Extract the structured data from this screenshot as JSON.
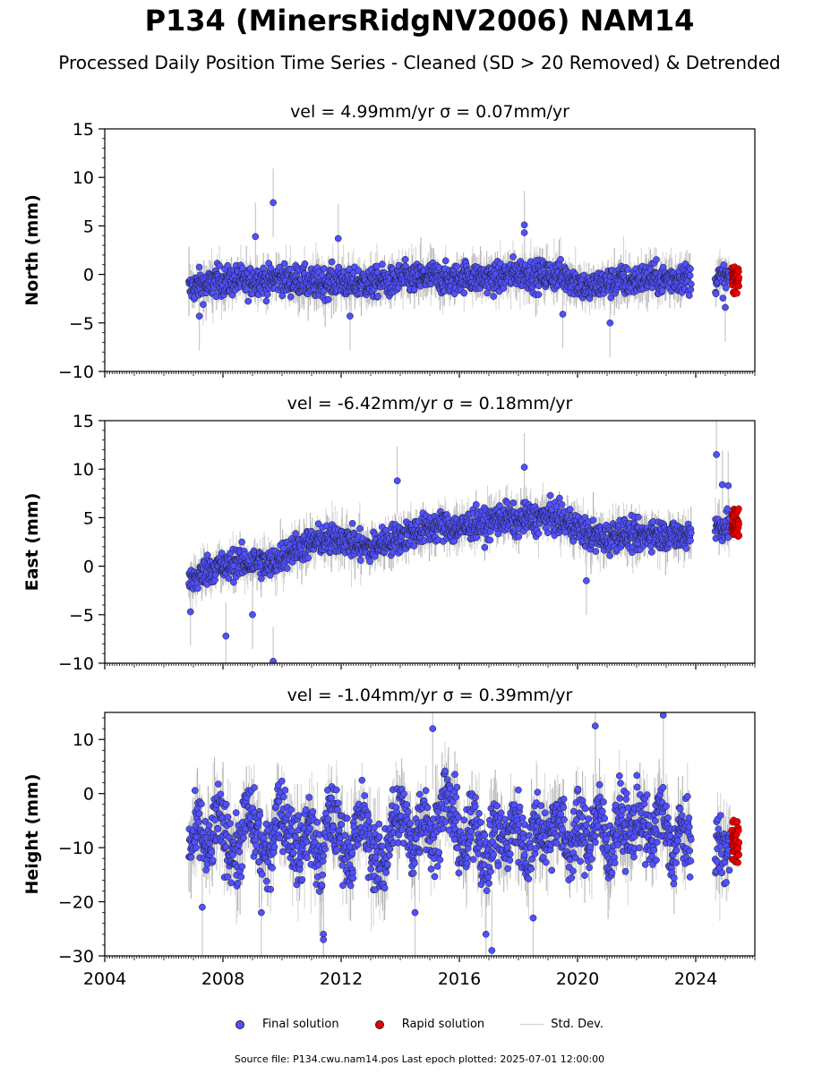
{
  "title": "P134 (MinersRidgNV2006) NAM14",
  "subtitle": "Processed Daily Position Time Series - Cleaned (SD > 20 Removed) & Detrended",
  "legend": {
    "final": "Final solution",
    "rapid": "Rapid solution",
    "std": "Std. Dev."
  },
  "footer": "Source file: P134.cwu.nam14.pos  Last epoch plotted: 2025-07-01 12:00:00",
  "colors": {
    "final": "#5050ff",
    "rapid": "#ee0000",
    "std": "#c8c8c8",
    "edge": "#1a1a1a"
  },
  "chart_data": [
    {
      "type": "scatter",
      "title": "vel = 4.99mm/yr   σ = 0.07mm/yr",
      "ylabel": "North (mm)",
      "xlim": [
        2004,
        2026
      ],
      "ylim": [
        -10,
        15
      ],
      "yticks": [
        -10,
        -5,
        0,
        5,
        10,
        15
      ],
      "xticks": [
        2004,
        2008,
        2012,
        2016,
        2020,
        2024
      ],
      "grid": false,
      "series": [
        {
          "name": "Final solution",
          "x": [
            2006.9,
            2007.2,
            2007.5,
            2007.8,
            2008.1,
            2008.5,
            2008.8,
            2009.2,
            2009.5,
            2009.9,
            2010.2,
            2010.6,
            2010.9,
            2011.3,
            2011.6,
            2012.0,
            2012.3,
            2012.7,
            2013.0,
            2013.4,
            2013.7,
            2014.1,
            2014.4,
            2014.8,
            2015.1,
            2015.5,
            2015.8,
            2016.2,
            2016.5,
            2016.9,
            2017.2,
            2017.6,
            2017.9,
            2018.3,
            2018.6,
            2019.0,
            2019.3,
            2019.7,
            2020.0,
            2020.4,
            2020.7,
            2021.1,
            2021.4,
            2021.8,
            2022.1,
            2022.5,
            2022.8,
            2023.2,
            2023.5,
            2023.8,
            2024.7,
            2025.0,
            2025.2
          ],
          "y": [
            -1.5,
            -1.0,
            -1.2,
            -0.6,
            -0.8,
            -0.5,
            -0.9,
            -0.4,
            -0.8,
            -0.3,
            -0.7,
            -0.5,
            -1.0,
            -0.9,
            -0.7,
            -0.6,
            -1.1,
            -0.8,
            -1.0,
            -0.6,
            -0.9,
            -0.3,
            -0.5,
            -0.4,
            -0.2,
            -0.5,
            -0.6,
            -0.1,
            -0.4,
            -0.3,
            -0.5,
            -0.1,
            0.2,
            0.1,
            -0.2,
            0.0,
            -0.1,
            -0.3,
            -0.8,
            -1.5,
            -1.0,
            -0.9,
            -0.6,
            -0.8,
            -0.5,
            -0.3,
            -0.6,
            -0.4,
            -0.3,
            -0.5,
            -0.5,
            -0.4,
            -0.3
          ],
          "outliers": [
            [
              2009.1,
              3.9
            ],
            [
              2009.7,
              7.4
            ],
            [
              2011.9,
              3.7
            ],
            [
              2018.2,
              5.1
            ],
            [
              2018.2,
              4.3
            ],
            [
              2021.1,
              -5.0
            ],
            [
              2025.0,
              -3.4
            ],
            [
              2007.2,
              -4.3
            ],
            [
              2012.3,
              -4.3
            ],
            [
              2019.5,
              -4.1
            ]
          ]
        },
        {
          "name": "Rapid solution",
          "x": [
            2025.25,
            2025.3,
            2025.35,
            2025.4,
            2025.45
          ],
          "y": [
            0.5,
            -0.3,
            0.2,
            -1.6,
            -0.6
          ]
        }
      ]
    },
    {
      "type": "scatter",
      "title": "vel = -6.42mm/yr   σ = 0.18mm/yr",
      "ylabel": "East (mm)",
      "xlim": [
        2004,
        2026
      ],
      "ylim": [
        -10,
        15
      ],
      "yticks": [
        -10,
        -5,
        0,
        5,
        10,
        15
      ],
      "xticks": [
        2004,
        2008,
        2012,
        2016,
        2020,
        2024
      ],
      "grid": false,
      "series": [
        {
          "name": "Final solution",
          "x": [
            2006.9,
            2007.2,
            2007.5,
            2007.8,
            2008.1,
            2008.5,
            2008.8,
            2009.2,
            2009.5,
            2009.9,
            2010.2,
            2010.6,
            2010.9,
            2011.3,
            2011.6,
            2012.0,
            2012.3,
            2012.7,
            2013.0,
            2013.4,
            2013.7,
            2014.1,
            2014.4,
            2014.8,
            2015.1,
            2015.5,
            2015.8,
            2016.2,
            2016.5,
            2016.9,
            2017.2,
            2017.6,
            2017.9,
            2018.3,
            2018.6,
            2019.0,
            2019.3,
            2019.7,
            2020.0,
            2020.4,
            2020.7,
            2021.1,
            2021.4,
            2021.8,
            2022.1,
            2022.5,
            2022.8,
            2023.2,
            2023.5,
            2023.8,
            2024.7,
            2025.0,
            2025.2
          ],
          "y": [
            -1.5,
            -1.0,
            -0.3,
            0.0,
            -0.2,
            0.5,
            0.3,
            0.5,
            0.0,
            0.8,
            1.5,
            2.0,
            2.2,
            2.8,
            2.5,
            3.0,
            2.5,
            2.0,
            1.8,
            2.5,
            2.8,
            3.0,
            3.5,
            3.8,
            4.0,
            4.2,
            3.8,
            4.0,
            4.5,
            4.2,
            4.8,
            5.0,
            4.5,
            5.0,
            4.8,
            5.2,
            4.8,
            4.5,
            4.0,
            3.2,
            3.0,
            2.8,
            3.5,
            3.2,
            3.0,
            3.5,
            3.2,
            3.3,
            3.0,
            3.5,
            4.0,
            4.2,
            4.0
          ],
          "outliers": [
            [
              2006.9,
              -4.7
            ],
            [
              2008.1,
              -7.2
            ],
            [
              2009.0,
              -5.0
            ],
            [
              2009.7,
              -9.8
            ],
            [
              2013.9,
              8.8
            ],
            [
              2018.2,
              10.2
            ],
            [
              2024.7,
              11.5
            ],
            [
              2020.3,
              -1.5
            ],
            [
              2024.9,
              8.4
            ],
            [
              2025.1,
              8.3
            ]
          ]
        },
        {
          "name": "Rapid solution",
          "x": [
            2025.25,
            2025.3,
            2025.35,
            2025.4,
            2025.45
          ],
          "y": [
            3.8,
            4.8,
            5.5,
            4.2,
            3.5
          ]
        }
      ]
    },
    {
      "type": "scatter",
      "title": "vel = -1.04mm/yr   σ = 0.39mm/yr",
      "ylabel": "Height (mm)",
      "xlim": [
        2004,
        2026
      ],
      "ylim": [
        -30,
        15
      ],
      "yticks": [
        -30,
        -20,
        -10,
        0,
        10
      ],
      "xticks": [
        2004,
        2008,
        2012,
        2016,
        2020,
        2024
      ],
      "grid": false,
      "series": [
        {
          "name": "Final solution",
          "x": [
            2006.9,
            2007.2,
            2007.5,
            2007.8,
            2008.1,
            2008.5,
            2008.8,
            2009.2,
            2009.5,
            2009.9,
            2010.2,
            2010.6,
            2010.9,
            2011.3,
            2011.6,
            2012.0,
            2012.3,
            2012.7,
            2013.0,
            2013.4,
            2013.7,
            2014.1,
            2014.4,
            2014.8,
            2015.1,
            2015.5,
            2015.8,
            2016.2,
            2016.5,
            2016.9,
            2017.2,
            2017.6,
            2017.9,
            2018.3,
            2018.6,
            2019.0,
            2019.3,
            2019.7,
            2020.0,
            2020.4,
            2020.7,
            2021.1,
            2021.4,
            2021.8,
            2022.1,
            2022.5,
            2022.8,
            2023.2,
            2023.5,
            2023.8,
            2024.7,
            2025.0,
            2025.2
          ],
          "y": [
            -10,
            -6,
            -12,
            -4,
            -8,
            -12,
            -3,
            -8,
            -13,
            -2,
            -6,
            -12,
            -5,
            -14,
            -3,
            -8,
            -12,
            -4,
            -10,
            -14,
            -6,
            -3,
            -11,
            -2,
            -10,
            0,
            -4,
            -12,
            -3,
            -14,
            -6,
            -10,
            -4,
            -12,
            -5,
            -9,
            -3,
            -11,
            -6,
            -9,
            -3,
            -12,
            -4,
            -8,
            -3,
            -10,
            -2,
            -12,
            -6,
            -10,
            -9,
            -11,
            -10
          ],
          "outliers": [
            [
              2007.3,
              -21
            ],
            [
              2009.3,
              -22
            ],
            [
              2011.4,
              -26
            ],
            [
              2011.4,
              -27
            ],
            [
              2014.5,
              -22
            ],
            [
              2017.1,
              -29
            ],
            [
              2016.9,
              -26
            ],
            [
              2018.5,
              -23
            ],
            [
              2015.1,
              12
            ],
            [
              2022.9,
              14.5
            ],
            [
              2020.6,
              12.5
            ]
          ]
        },
        {
          "name": "Rapid solution",
          "x": [
            2025.25,
            2025.3,
            2025.35,
            2025.4,
            2025.45
          ],
          "y": [
            -6,
            -8,
            -10,
            -12,
            -9
          ]
        }
      ]
    }
  ]
}
